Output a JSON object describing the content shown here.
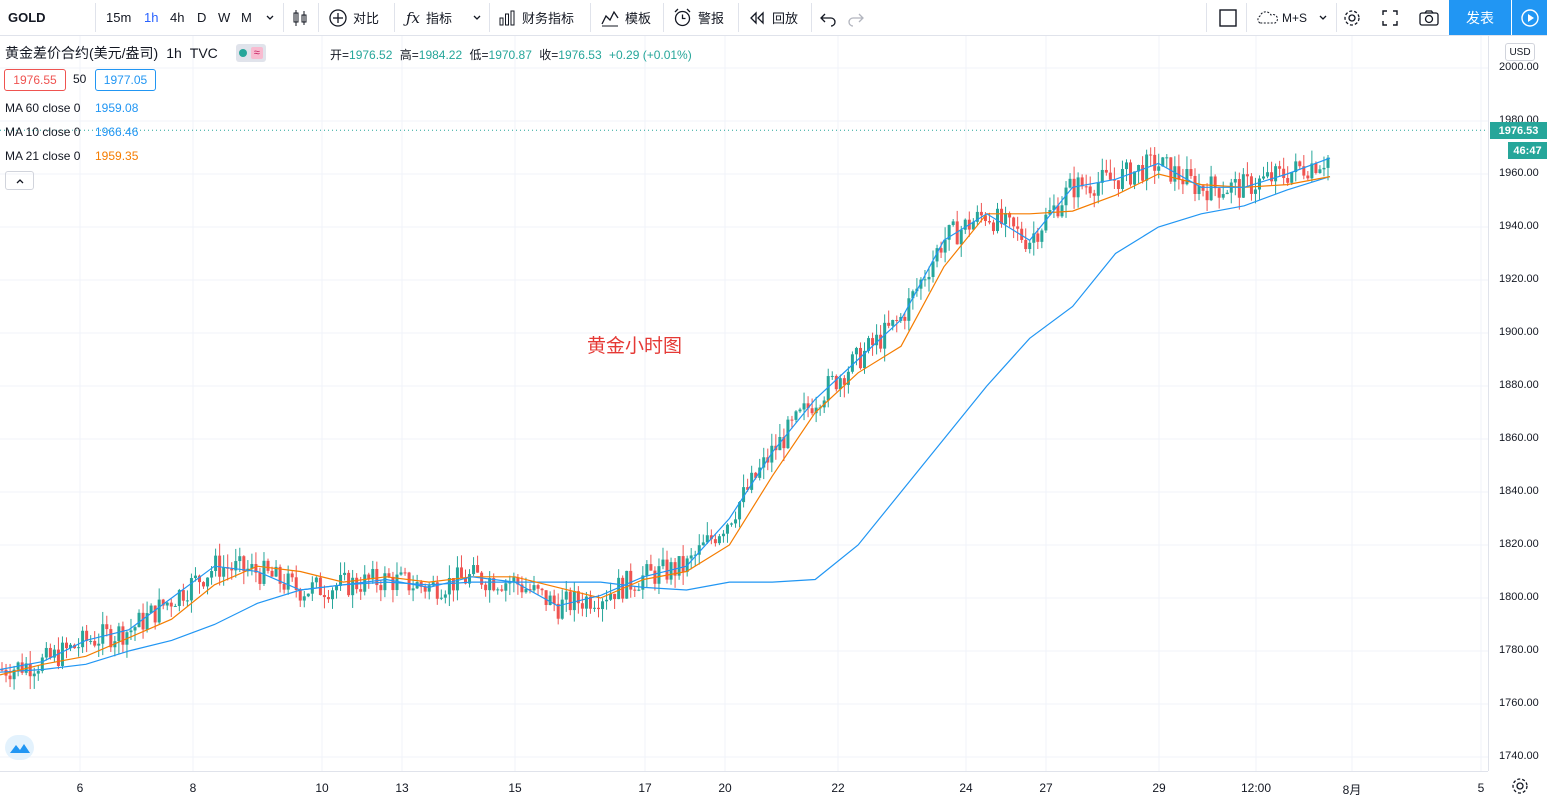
{
  "toolbar": {
    "symbol": "GOLD",
    "intervals": [
      "15m",
      "1h",
      "4h",
      "D",
      "W",
      "M"
    ],
    "active_interval": "1h",
    "compare_label": "对比",
    "indicators_label": "指标",
    "financials_label": "财务指标",
    "templates_label": "模板",
    "alerts_label": "警报",
    "replay_label": "回放",
    "layout_label": "M+S",
    "publish_label": "发表"
  },
  "legend": {
    "title": "黄金差价合约(美元/盎司)",
    "interval": "1h",
    "source": "TVC",
    "open_label": "开=",
    "open": "1976.52",
    "high_label": "高=",
    "high": "1984.22",
    "low_label": "低=",
    "low": "1970.87",
    "close_label": "收=",
    "close": "1976.53",
    "change": "+0.29 (+0.01%)",
    "bid": "1976.55",
    "spread": "50",
    "ask": "1977.05",
    "ma": [
      {
        "label": "MA 60 close 0",
        "value": "1959.08",
        "color": "#2196f3"
      },
      {
        "label": "MA 10 close 0",
        "value": "1966.46",
        "color": "#2196f3"
      },
      {
        "label": "MA 21 close 0",
        "value": "1959.35",
        "color": "#f57c00"
      }
    ]
  },
  "annotation": "黄金小时图",
  "price_axis": {
    "currency": "USD",
    "ticks": [
      "2000.00",
      "1980.00",
      "1960.00",
      "1940.00",
      "1920.00",
      "1900.00",
      "1880.00",
      "1860.00",
      "1840.00",
      "1820.00",
      "1800.00",
      "1780.00",
      "1760.00",
      "1740.00"
    ],
    "last_price": "1976.53",
    "countdown": "46:47"
  },
  "time_axis": {
    "ticks": [
      "6",
      "8",
      "10",
      "13",
      "15",
      "17",
      "20",
      "22",
      "24",
      "27",
      "29",
      "12:00",
      "8月",
      "5"
    ]
  },
  "colors": {
    "up": "#26a69a",
    "down": "#ef5350",
    "accent": "#2196f3",
    "ma21": "#f57c00"
  },
  "chart_data": {
    "type": "line",
    "title": "黄金差价合约(美元/盎司)",
    "ylim": [
      1735,
      2010
    ],
    "series": [
      {
        "name": "MA 60 close 0",
        "values": [
          1772,
          1773,
          1775,
          1780,
          1784,
          1790,
          1798,
          1803,
          1805,
          1806,
          1805,
          1806,
          1806,
          1806,
          1806,
          1804,
          1803,
          1806,
          1806,
          1807,
          1820,
          1840,
          1860,
          1880,
          1898,
          1910,
          1930,
          1940,
          1945,
          1948,
          1954,
          1959
        ]
      },
      {
        "name": "MA 21 close 0",
        "values": [
          1771,
          1775,
          1778,
          1785,
          1792,
          1805,
          1812,
          1810,
          1806,
          1808,
          1806,
          1808,
          1808,
          1804,
          1800,
          1807,
          1810,
          1820,
          1846,
          1870,
          1885,
          1895,
          1925,
          1945,
          1945,
          1946,
          1952,
          1960,
          1956,
          1955,
          1956,
          1959
        ]
      },
      {
        "name": "MA 10 close 0",
        "values": [
          1773,
          1776,
          1784,
          1788,
          1800,
          1812,
          1810,
          1803,
          1805,
          1807,
          1804,
          1808,
          1806,
          1797,
          1801,
          1808,
          1812,
          1830,
          1855,
          1875,
          1890,
          1905,
          1935,
          1945,
          1935,
          1955,
          1958,
          1964,
          1955,
          1955,
          1960,
          1966
        ]
      }
    ]
  }
}
